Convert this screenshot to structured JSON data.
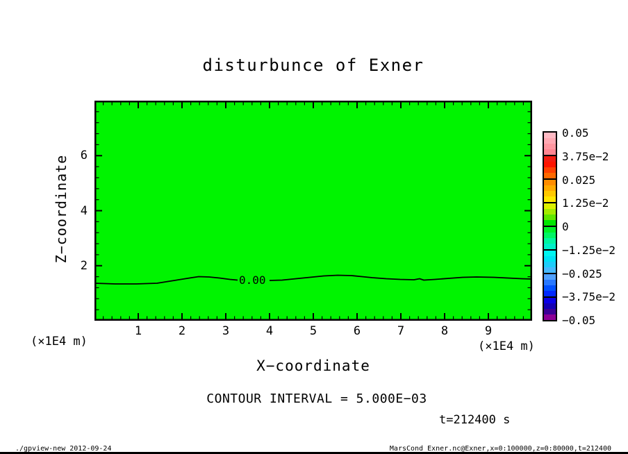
{
  "title": "disturbunce of Exner",
  "plot": {
    "fill_color": "#00f400",
    "frame_color": "#000000",
    "contour_label": "0.00",
    "x_axis": {
      "label": "X−coordinate",
      "ticks": [
        "1",
        "2",
        "3",
        "4",
        "5",
        "6",
        "7",
        "8",
        "9"
      ],
      "unit_left": "(×1E4 m)",
      "unit_right": "(×1E4 m)"
    },
    "y_axis": {
      "label": "Z−coordinate",
      "ticks": [
        "2",
        "4",
        "6"
      ]
    }
  },
  "colorbar": {
    "labels": [
      "0.05",
      "3.75e−2",
      "0.025",
      "1.25e−2",
      "0",
      "−1.25e−2",
      "−0.025",
      "−3.75e−2",
      "−0.05"
    ],
    "segments": [
      [
        "#ffbac4",
        "#ffa8b2",
        "#ff96a0",
        "#ff8591"
      ],
      [
        "#f31b10",
        "#ff1400",
        "#ff4100",
        "#ff6900"
      ],
      [
        "#ff8c00",
        "#ffaa00",
        "#ffc800",
        "#ffe600"
      ],
      [
        "#dcf000",
        "#a5eb00",
        "#5fe600",
        "#00e600"
      ],
      [
        "#00f028",
        "#00f564",
        "#00f5a0",
        "#00f0c8"
      ],
      [
        "#00f5f0",
        "#00e1f5",
        "#1ecdfa",
        "#46b9ff"
      ],
      [
        "#50a0ff",
        "#2878ff",
        "#0050ff",
        "#0028ff"
      ],
      [
        "#0a00e6",
        "#1400b4",
        "#3c0096",
        "#8c0096"
      ]
    ]
  },
  "annotations": {
    "contour_interval": "CONTOUR INTERVAL = 5.000E−03",
    "time": "t=212400 s"
  },
  "footer": {
    "left": "./gpview-new  2012-09-24",
    "right": "MarsCond_Exner.nc@Exner,x=0:100000,z=0:80000,t=212400"
  },
  "chart_data": {
    "type": "heatmap",
    "title": "disturbunce of Exner",
    "xlabel": "X−coordinate (×1E4 m)",
    "ylabel": "Z−coordinate (×1E4 m)",
    "xlim": [
      0,
      10
    ],
    "ylim": [
      0,
      8
    ],
    "x_major_ticks": [
      1,
      2,
      3,
      4,
      5,
      6,
      7,
      8,
      9
    ],
    "x_minor_tick_step": 0.2,
    "y_major_ticks": [
      2,
      4,
      6
    ],
    "y_minor_tick_step": 0.4,
    "grid": false,
    "legend_position": "colorbar-right",
    "colorbar_levels": [
      0.05,
      0.0375,
      0.025,
      0.0125,
      0,
      -0.0125,
      -0.025,
      -0.0375,
      -0.05
    ],
    "contour_interval": 0.005,
    "contour_lines": [
      {
        "level": 0.0,
        "label": "0.00",
        "approx_height_x1e4_m": 1.45,
        "shape": "nearly flat undulating line spanning full x range with gentle bumps near x≈2.3, x≈5.6, x≈8.8"
      }
    ],
    "field_description": "Exner function disturbance is ≈ 0 (green band of colorbar) over the entire domain; only the 0.00 contour near z ≈ 1.5×1E4 m is visible",
    "time_seconds": 212400
  }
}
